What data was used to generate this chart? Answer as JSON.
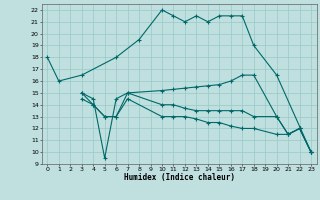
{
  "xlabel": "Humidex (Indice chaleur)",
  "bg_color": "#c0e0e0",
  "grid_color": "#98c8c8",
  "line_color": "#006868",
  "xlim": [
    -0.5,
    23.5
  ],
  "ylim": [
    9,
    22.5
  ],
  "yticks": [
    9,
    10,
    11,
    12,
    13,
    14,
    15,
    16,
    17,
    18,
    19,
    20,
    21,
    22
  ],
  "xticks": [
    0,
    1,
    2,
    3,
    4,
    5,
    6,
    7,
    8,
    9,
    10,
    11,
    12,
    13,
    14,
    15,
    16,
    17,
    18,
    19,
    20,
    21,
    22,
    23
  ],
  "series1": [
    [
      0,
      18
    ],
    [
      1,
      16
    ],
    [
      3,
      16.5
    ],
    [
      6,
      18
    ],
    [
      8,
      19.5
    ],
    [
      10,
      22
    ],
    [
      11,
      21.5
    ],
    [
      12,
      21
    ],
    [
      13,
      21.5
    ],
    [
      14,
      21
    ],
    [
      15,
      21.5
    ],
    [
      16,
      21.5
    ],
    [
      17,
      21.5
    ],
    [
      18,
      19
    ],
    [
      20,
      16.5
    ],
    [
      23,
      10
    ]
  ],
  "series2": [
    [
      3,
      15
    ],
    [
      4,
      14.5
    ],
    [
      5,
      9.5
    ],
    [
      6,
      14.5
    ],
    [
      7,
      15
    ],
    [
      10,
      15.2
    ],
    [
      11,
      15.3
    ],
    [
      12,
      15.4
    ],
    [
      13,
      15.5
    ],
    [
      14,
      15.6
    ],
    [
      15,
      15.7
    ],
    [
      16,
      16.0
    ],
    [
      17,
      16.5
    ],
    [
      18,
      16.5
    ],
    [
      20,
      13
    ],
    [
      21,
      11.5
    ],
    [
      22,
      12
    ],
    [
      23,
      10
    ]
  ],
  "series3": [
    [
      3,
      15
    ],
    [
      4,
      14
    ],
    [
      5,
      13
    ],
    [
      6,
      13
    ],
    [
      7,
      15
    ],
    [
      10,
      14
    ],
    [
      11,
      14
    ],
    [
      12,
      13.7
    ],
    [
      13,
      13.5
    ],
    [
      14,
      13.5
    ],
    [
      15,
      13.5
    ],
    [
      16,
      13.5
    ],
    [
      17,
      13.5
    ],
    [
      18,
      13
    ],
    [
      20,
      13
    ],
    [
      21,
      11.5
    ],
    [
      22,
      12
    ],
    [
      23,
      10
    ]
  ],
  "series4": [
    [
      3,
      14.5
    ],
    [
      4,
      14
    ],
    [
      5,
      13
    ],
    [
      6,
      13
    ],
    [
      7,
      14.5
    ],
    [
      10,
      13
    ],
    [
      11,
      13
    ],
    [
      12,
      13
    ],
    [
      13,
      12.8
    ],
    [
      14,
      12.5
    ],
    [
      15,
      12.5
    ],
    [
      16,
      12.2
    ],
    [
      17,
      12
    ],
    [
      18,
      12
    ],
    [
      20,
      11.5
    ],
    [
      21,
      11.5
    ],
    [
      22,
      12
    ],
    [
      23,
      10
    ]
  ]
}
